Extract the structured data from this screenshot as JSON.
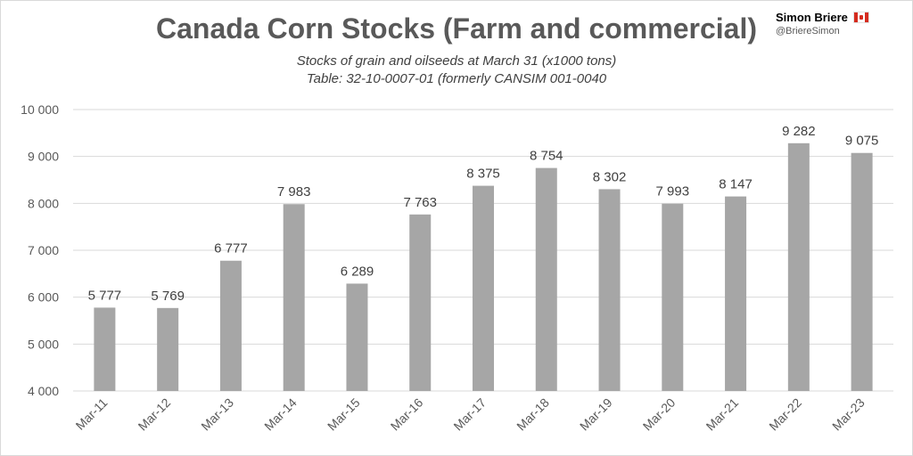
{
  "brand": {
    "name": "Simon Briere",
    "handle": "@BriereSimon",
    "flag_icon": "canada-flag-icon"
  },
  "chart_data": {
    "type": "bar",
    "title": "Canada Corn Stocks (Farm and commercial)",
    "subtitle": "Stocks of grain and oilseeds at March 31 (x1000 tons)",
    "subtitle2": "Table: 32-10-0007-01 (formerly CANSIM 001-0040",
    "categories": [
      "Mar-11",
      "Mar-12",
      "Mar-13",
      "Mar-14",
      "Mar-15",
      "Mar-16",
      "Mar-17",
      "Mar-18",
      "Mar-19",
      "Mar-20",
      "Mar-21",
      "Mar-22",
      "Mar-23"
    ],
    "values": [
      5777,
      5769,
      6777,
      7983,
      6289,
      7763,
      8375,
      8754,
      8302,
      7993,
      8147,
      9282,
      9075
    ],
    "value_labels": [
      "5 777",
      "5 769",
      "6 777",
      "7 983",
      "6 289",
      "7 763",
      "8 375",
      "8 754",
      "8 302",
      "7 993",
      "8 147",
      "9 282",
      "9 075"
    ],
    "ylim": [
      4000,
      10000
    ],
    "yticks": [
      4000,
      5000,
      6000,
      7000,
      8000,
      9000,
      10000
    ],
    "ytick_labels": [
      "4 000",
      "5 000",
      "6 000",
      "7 000",
      "8 000",
      "9 000",
      "10 000"
    ],
    "xlabel": "",
    "ylabel": "",
    "grid": true,
    "bar_color": "#a6a6a6",
    "grid_color": "#d9d9d9"
  }
}
